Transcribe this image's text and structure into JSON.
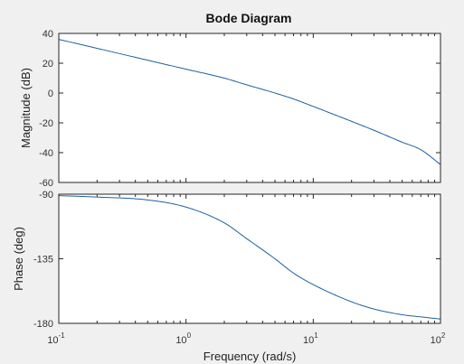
{
  "chart_data": {
    "type": "line",
    "title": "Bode Diagram",
    "xlabel": "Frequency  (rad/s)",
    "xscale": "log",
    "xlim": [
      0.1,
      100
    ],
    "x_ticks": [
      {
        "base": "10",
        "exp": "-1"
      },
      {
        "base": "10",
        "exp": "0"
      },
      {
        "base": "10",
        "exp": "1"
      },
      {
        "base": "10",
        "exp": "2"
      }
    ],
    "grid": false,
    "colors": {
      "line": "#1f5fa0",
      "background": "#f0f0f0",
      "axes": "#ffffff",
      "frame": "#262626"
    },
    "magnitude": {
      "ylabel": "Magnitude (dB)",
      "ylim": [
        -60,
        40
      ],
      "y_ticks": [
        "40",
        "20",
        "0",
        "-20",
        "-40",
        "-60"
      ],
      "x": [
        0.1,
        0.2,
        0.5,
        1,
        2,
        3,
        5,
        7,
        10,
        20,
        30,
        50,
        70,
        100
      ],
      "values": [
        36,
        30,
        22,
        16,
        10,
        5.5,
        0,
        -4,
        -9,
        -19,
        -25,
        -33,
        -38,
        -48
      ]
    },
    "phase": {
      "ylabel": "Phase (deg)",
      "ylim": [
        -180,
        -90
      ],
      "y_ticks": [
        "-90",
        "-135",
        "-180"
      ],
      "x": [
        0.1,
        0.2,
        0.5,
        1,
        2,
        3,
        5,
        7,
        10,
        20,
        30,
        50,
        70,
        100
      ],
      "values": [
        -91,
        -92,
        -94,
        -99,
        -110,
        -121,
        -135,
        -145,
        -153,
        -165,
        -170,
        -174,
        -175.5,
        -177
      ]
    }
  }
}
